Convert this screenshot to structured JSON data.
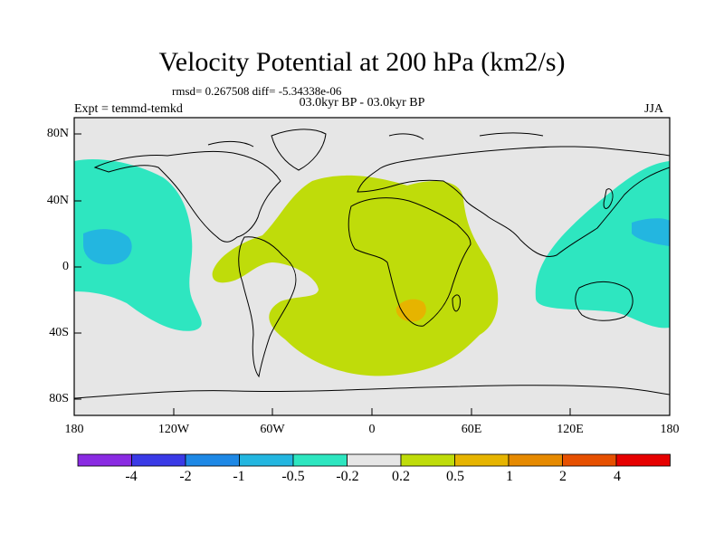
{
  "title": "Velocity Potential at 200 hPa (km2/s)",
  "stats": "rmsd= 0.267508 diff= -5.34338e-06",
  "period": "03.0kyr BP - 03.0kyr BP",
  "experiment": "Expt = temmd-temkd",
  "season": "JJA",
  "lat_labels": [
    "80N",
    "40N",
    "0",
    "40S",
    "80S"
  ],
  "lon_labels": [
    "180",
    "120W",
    "60W",
    "0",
    "60E",
    "120E",
    "180"
  ],
  "colorbar": {
    "colors": [
      "#8a2be2",
      "#3a3ae6",
      "#1e88e5",
      "#23b6e0",
      "#2ee6c0",
      "#e6e6e6",
      "#bfdc0a",
      "#e6b400",
      "#e68a00",
      "#e65000",
      "#e60000"
    ],
    "labels": [
      "-4",
      "-2",
      "-1",
      "-0.5",
      "-0.2",
      "0.2",
      "0.5",
      "1",
      "2",
      "4"
    ]
  },
  "field_colors": {
    "background": "#e6e6e6",
    "negative_weak": "#2ee6c0",
    "negative_mid": "#23b6e0",
    "positive_weak": "#bfdc0a",
    "positive_mid": "#e6b400"
  }
}
